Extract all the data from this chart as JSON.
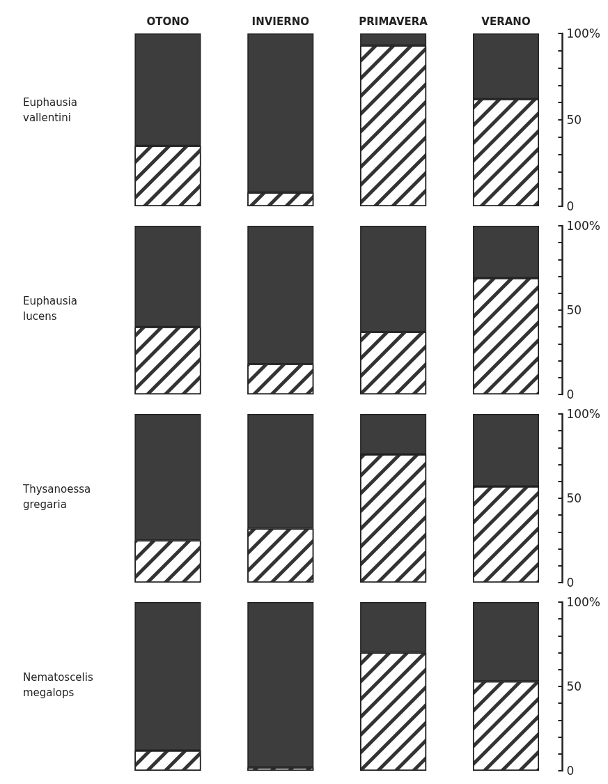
{
  "chart_data": [
    {
      "type": "bar",
      "title": "Euphausia vallentini",
      "categories": [
        "OTONO",
        "INVIERNO",
        "PRIMAVERA",
        "VERANO"
      ],
      "stacked": true,
      "grid": false,
      "ylim": [
        0,
        100
      ],
      "yticks": [
        {
          "value": 0,
          "label": "0"
        },
        {
          "value": 10,
          "label": null
        },
        {
          "value": 20,
          "label": null
        },
        {
          "value": 30,
          "label": null
        },
        {
          "value": 40,
          "label": null
        },
        {
          "value": 50,
          "label": "50"
        },
        {
          "value": 60,
          "label": null
        },
        {
          "value": 70,
          "label": null
        },
        {
          "value": 80,
          "label": null
        },
        {
          "value": 90,
          "label": null
        },
        {
          "value": 100,
          "label": "100%"
        }
      ],
      "series": [
        {
          "color": "#ffffff",
          "values": [
            35,
            8,
            93,
            62
          ]
        },
        {
          "color": "#3d3d3d",
          "values": [
            65,
            92,
            7,
            38
          ]
        }
      ]
    },
    {
      "type": "bar",
      "title": "Euphausia lucens",
      "categories": [
        null,
        null,
        null,
        null
      ],
      "stacked": true,
      "grid": false,
      "ylim": [
        0,
        100
      ],
      "yticks": [
        {
          "value": 0,
          "label": "0"
        },
        {
          "value": 10,
          "label": null
        },
        {
          "value": 20,
          "label": null
        },
        {
          "value": 30,
          "label": null
        },
        {
          "value": 40,
          "label": null
        },
        {
          "value": 50,
          "label": "50"
        },
        {
          "value": 60,
          "label": null
        },
        {
          "value": 70,
          "label": null
        },
        {
          "value": 80,
          "label": null
        },
        {
          "value": 90,
          "label": null
        },
        {
          "value": 100,
          "label": "100%"
        }
      ],
      "series": [
        {
          "color": "#ffffff",
          "values": [
            40,
            18,
            37,
            69
          ]
        },
        {
          "color": "#3d3d3d",
          "values": [
            60,
            82,
            63,
            31
          ]
        }
      ]
    },
    {
      "type": "bar",
      "title": "Thysanoessa gregaria",
      "categories": [
        null,
        null,
        null,
        null
      ],
      "stacked": true,
      "grid": false,
      "ylim": [
        0,
        100
      ],
      "yticks": [
        {
          "value": 0,
          "label": "0"
        },
        {
          "value": 10,
          "label": null
        },
        {
          "value": 20,
          "label": null
        },
        {
          "value": 30,
          "label": null
        },
        {
          "value": 40,
          "label": null
        },
        {
          "value": 50,
          "label": "50"
        },
        {
          "value": 60,
          "label": null
        },
        {
          "value": 70,
          "label": null
        },
        {
          "value": 80,
          "label": null
        },
        {
          "value": 90,
          "label": null
        },
        {
          "value": 100,
          "label": "100%"
        }
      ],
      "series": [
        {
          "color": "#ffffff",
          "values": [
            25,
            32,
            76,
            57
          ]
        },
        {
          "color": "#3d3d3d",
          "values": [
            75,
            68,
            24,
            43
          ]
        }
      ]
    },
    {
      "type": "bar",
      "title": "Nematoscelis megalops",
      "categories": [
        null,
        null,
        null,
        null
      ],
      "stacked": true,
      "grid": false,
      "ylim": [
        0,
        100
      ],
      "yticks": [
        {
          "value": 0,
          "label": "0"
        },
        {
          "value": 10,
          "label": null
        },
        {
          "value": 20,
          "label": null
        },
        {
          "value": 30,
          "label": null
        },
        {
          "value": 40,
          "label": null
        },
        {
          "value": 50,
          "label": "50"
        },
        {
          "value": 60,
          "label": null
        },
        {
          "value": 70,
          "label": null
        },
        {
          "value": 80,
          "label": null
        },
        {
          "value": 90,
          "label": null
        },
        {
          "value": 100,
          "label": "100%"
        }
      ],
      "series": [
        {
          "color": "#ffffff",
          "values": [
            12,
            2,
            70,
            53
          ]
        },
        {
          "color": "#3d3d3d",
          "values": [
            88,
            98,
            30,
            47
          ]
        }
      ]
    }
  ]
}
